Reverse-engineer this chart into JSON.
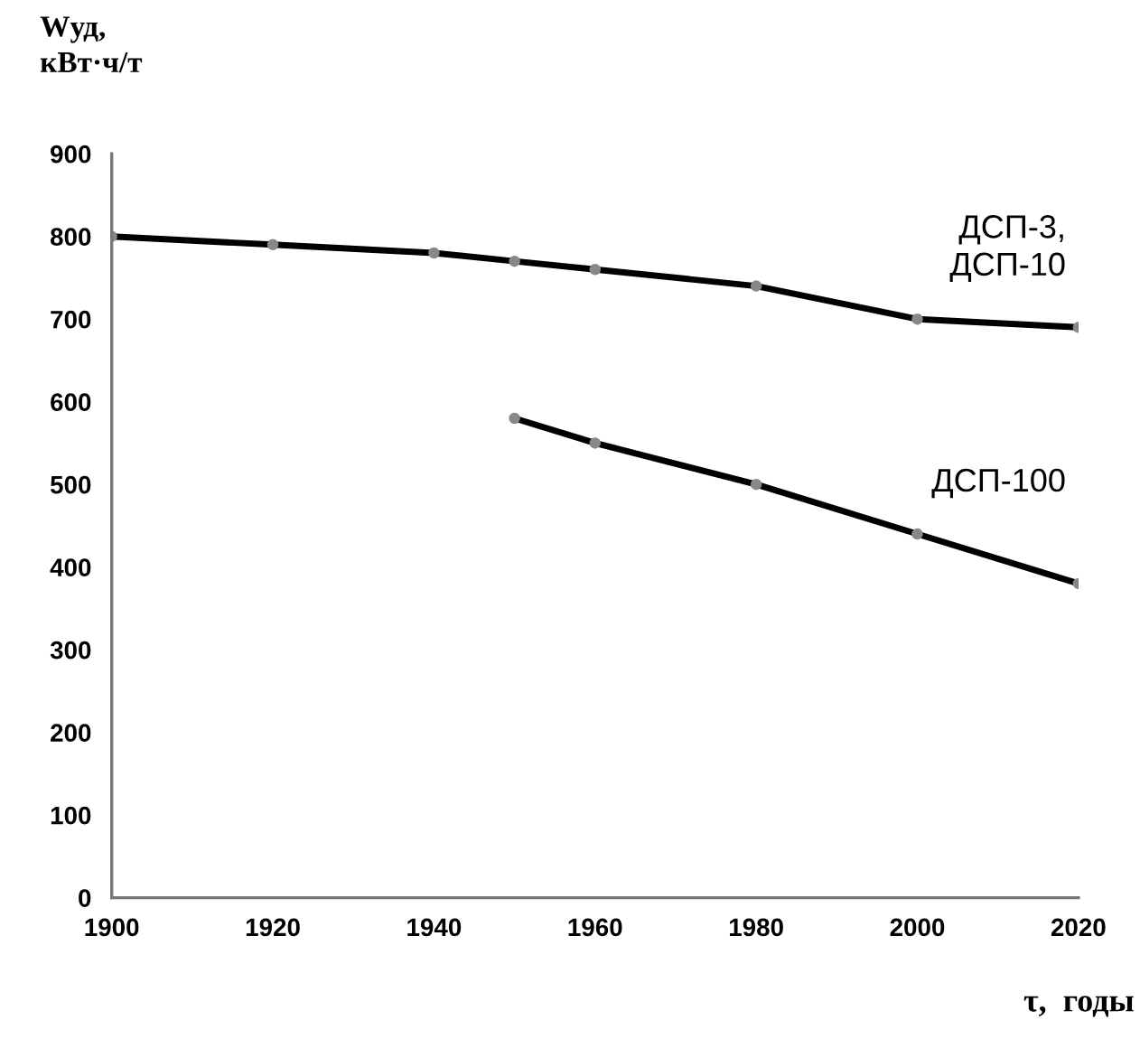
{
  "chart_data": {
    "type": "line",
    "ylabel": "Wуд,\nкВт·ч/т",
    "xlabel": "τ,  годы",
    "xlim": [
      1900,
      2020
    ],
    "xticks": [
      1900,
      1920,
      1940,
      1960,
      1980,
      2000,
      2020
    ],
    "ylim": [
      0,
      900
    ],
    "yticks": [
      0,
      100,
      200,
      300,
      400,
      500,
      600,
      700,
      800,
      900
    ],
    "grid": false,
    "legend": false,
    "marker": "circle",
    "line_style": "solid",
    "series": [
      {
        "name": "ДСП-3,\nДСП-10",
        "color": "#000000",
        "x": [
          1900,
          1920,
          1940,
          1950,
          1960,
          1980,
          2000,
          2020
        ],
        "values": [
          800,
          790,
          780,
          770,
          760,
          740,
          700,
          690
        ]
      },
      {
        "name": "ДСП-100",
        "color": "#000000",
        "x": [
          1950,
          1960,
          1980,
          2000,
          2020
        ],
        "values": [
          580,
          550,
          500,
          440,
          380
        ]
      }
    ]
  }
}
